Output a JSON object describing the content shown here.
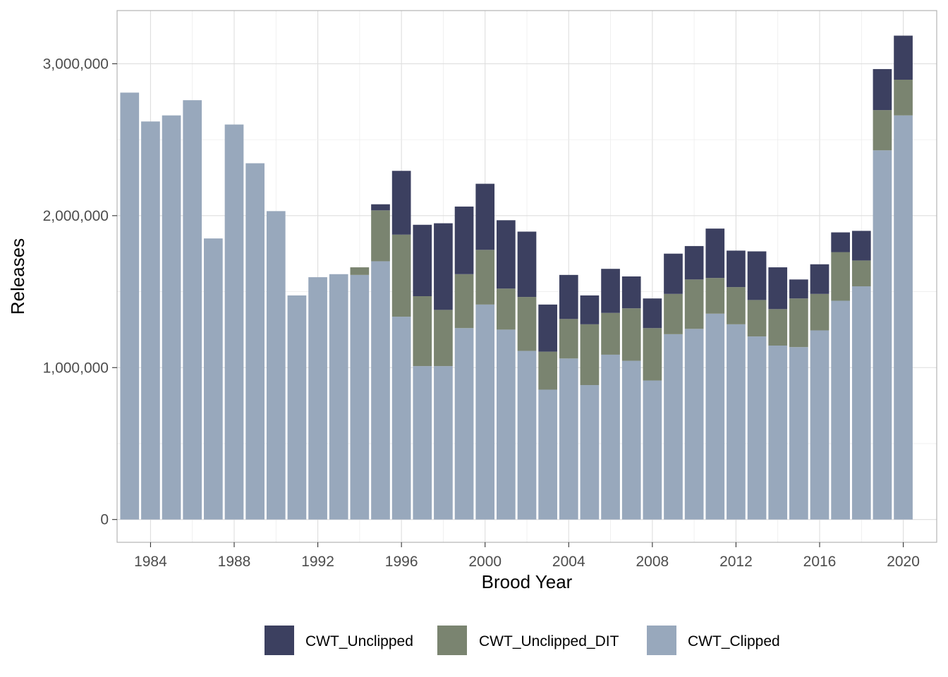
{
  "chart_data": {
    "type": "bar",
    "stacked": true,
    "xlabel": "Brood Year",
    "ylabel": "Releases",
    "x": [
      1983,
      1984,
      1985,
      1986,
      1987,
      1988,
      1989,
      1990,
      1991,
      1992,
      1993,
      1994,
      1995,
      1996,
      1997,
      1998,
      1999,
      2000,
      2001,
      2002,
      2003,
      2004,
      2005,
      2006,
      2007,
      2008,
      2009,
      2010,
      2011,
      2012,
      2013,
      2014,
      2015,
      2016,
      2017,
      2018,
      2019,
      2020
    ],
    "x_ticks": [
      "1984",
      "1988",
      "1992",
      "1996",
      "2000",
      "2004",
      "2008",
      "2012",
      "2016",
      "2020"
    ],
    "y_ticks": [
      "0",
      "1,000,000",
      "2,000,000",
      "3,000,000"
    ],
    "ylim": [
      -150000,
      3350000
    ],
    "grid": true,
    "legend_position": "bottom",
    "series": [
      {
        "name": "CWT_Clipped",
        "color": "#98a8bc",
        "values": [
          2810000,
          2620000,
          2660000,
          2760000,
          1850000,
          2600000,
          2345000,
          2030000,
          1475000,
          1595000,
          1615000,
          1610000,
          1700000,
          1335000,
          1010000,
          1010000,
          1260000,
          1415000,
          1250000,
          1110000,
          855000,
          1060000,
          885000,
          1085000,
          1045000,
          915000,
          1220000,
          1255000,
          1355000,
          1285000,
          1205000,
          1145000,
          1135000,
          1245000,
          1440000,
          1535000,
          2430000,
          2660000
        ]
      },
      {
        "name": "CWT_Unclipped_DIT",
        "color": "#7a8470",
        "values": [
          0,
          0,
          0,
          0,
          0,
          0,
          0,
          0,
          0,
          0,
          0,
          50000,
          335000,
          540000,
          460000,
          370000,
          355000,
          360000,
          270000,
          355000,
          250000,
          260000,
          400000,
          275000,
          345000,
          345000,
          265000,
          325000,
          235000,
          245000,
          240000,
          240000,
          320000,
          240000,
          320000,
          170000,
          265000,
          235000
        ]
      },
      {
        "name": "CWT_Unclipped",
        "color": "#3c4060",
        "values": [
          0,
          0,
          0,
          0,
          0,
          0,
          0,
          0,
          0,
          0,
          0,
          0,
          40000,
          420000,
          470000,
          570000,
          445000,
          435000,
          450000,
          430000,
          310000,
          290000,
          190000,
          290000,
          210000,
          195000,
          265000,
          220000,
          325000,
          240000,
          320000,
          275000,
          125000,
          195000,
          130000,
          195000,
          270000,
          290000
        ]
      }
    ],
    "legend_order": [
      "CWT_Unclipped",
      "CWT_Unclipped_DIT",
      "CWT_Clipped"
    ]
  }
}
